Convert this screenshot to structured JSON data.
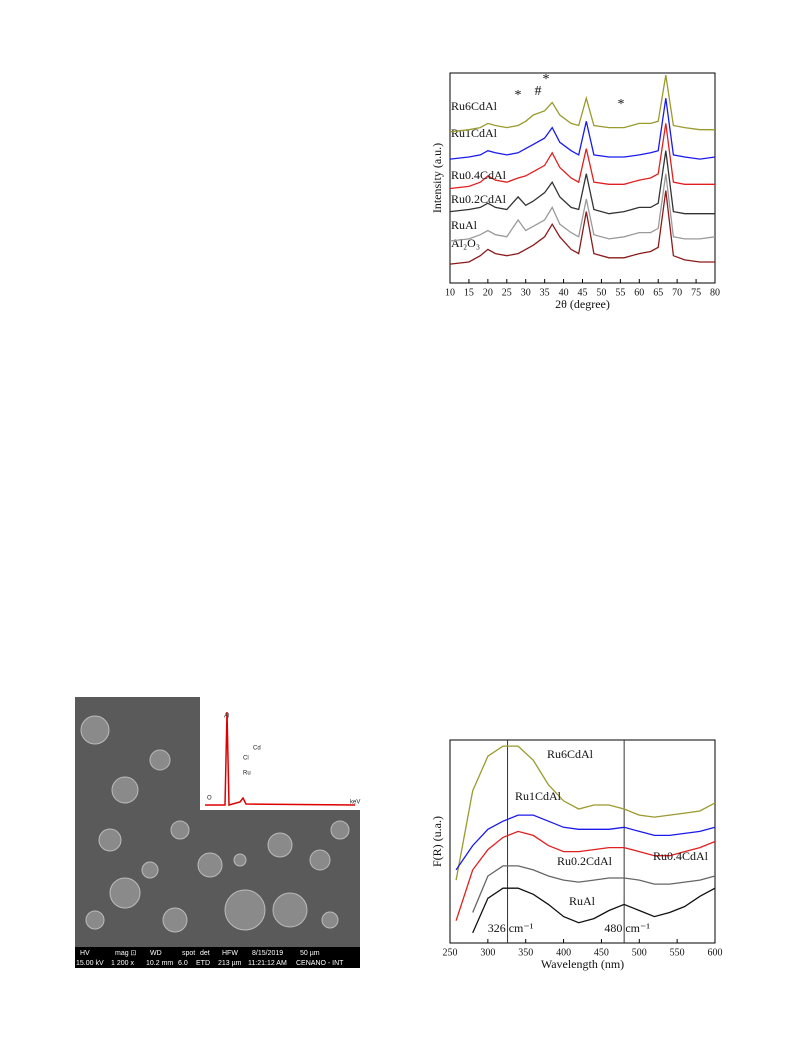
{
  "chart_data": [
    {
      "type": "line",
      "xlabel": "2θ (degree)",
      "ylabel": "Intensity (a.u.)",
      "xlim": [
        10,
        80
      ],
      "xticks": [
        10,
        15,
        20,
        25,
        30,
        35,
        40,
        45,
        50,
        55,
        60,
        65,
        70,
        75,
        80
      ],
      "ylim": [
        0,
        100
      ],
      "annotations": [
        "*",
        "#",
        "*",
        "*"
      ],
      "x": [
        10,
        15,
        18,
        20,
        22,
        25,
        28,
        30,
        32,
        35,
        37,
        39,
        42,
        44,
        46,
        48,
        52,
        56,
        60,
        63,
        65,
        67,
        69,
        72,
        76,
        80
      ],
      "series": [
        {
          "name": "Al₂O₃",
          "color": "#8b1a1a",
          "values": [
            9,
            10,
            13,
            16,
            14,
            13,
            14,
            16,
            18,
            22,
            28,
            22,
            16,
            14,
            34,
            14,
            12,
            12,
            14,
            15,
            17,
            44,
            13,
            11,
            10,
            10
          ]
        },
        {
          "name": "RuAl",
          "color": "#9a9a9a",
          "values": [
            20,
            21,
            23,
            25,
            23,
            22,
            30,
            25,
            27,
            30,
            36,
            28,
            24,
            22,
            40,
            23,
            21,
            22,
            24,
            24,
            26,
            52,
            22,
            21,
            21,
            22
          ]
        },
        {
          "name": "Ru0.2CdAl",
          "color": "#333333",
          "values": [
            34,
            35,
            36,
            38,
            36,
            35,
            41,
            37,
            39,
            43,
            48,
            41,
            36,
            35,
            52,
            35,
            33,
            34,
            36,
            36,
            38,
            63,
            34,
            33,
            33,
            33
          ]
        },
        {
          "name": "Ru0.4CdAl",
          "color": "#e02020",
          "values": [
            45,
            46,
            48,
            51,
            49,
            48,
            50,
            51,
            53,
            56,
            62,
            55,
            50,
            48,
            64,
            48,
            47,
            47,
            49,
            50,
            52,
            76,
            48,
            47,
            47,
            47
          ]
        },
        {
          "name": "Ru1CdAl",
          "color": "#1a1aee",
          "values": [
            59,
            60,
            61,
            63,
            62,
            61,
            62,
            64,
            66,
            69,
            74,
            67,
            63,
            61,
            77,
            61,
            60,
            60,
            61,
            62,
            63,
            88,
            61,
            60,
            59,
            60
          ]
        },
        {
          "name": "Ru6CdAl",
          "color": "#9a9a2e",
          "values": [
            72,
            73,
            74,
            76,
            75,
            74,
            75,
            77,
            80,
            82,
            86,
            80,
            76,
            75,
            88,
            75,
            74,
            74,
            76,
            76,
            77,
            99,
            75,
            74,
            73,
            73
          ]
        }
      ]
    },
    {
      "type": "line",
      "xlabel": "Wavelength (nm)",
      "ylabel": "F(R) (u.a.)",
      "xlim": [
        250,
        600
      ],
      "xticks": [
        250,
        300,
        350,
        400,
        450,
        500,
        550,
        600
      ],
      "ylim": [
        0,
        100
      ],
      "vlines": [
        {
          "value": 326,
          "label": "326 cm⁻¹"
        },
        {
          "value": 480,
          "label": "480 cm⁻¹"
        }
      ],
      "x": [
        258,
        280,
        300,
        320,
        340,
        360,
        380,
        400,
        420,
        440,
        460,
        480,
        500,
        520,
        540,
        560,
        580,
        600
      ],
      "series": [
        {
          "name": "Ru6CdAl",
          "color": "#9a9a2e",
          "values": [
            31,
            75,
            92,
            97,
            97,
            90,
            78,
            70,
            66,
            68,
            68,
            66,
            63,
            62,
            63,
            64,
            65,
            69
          ]
        },
        {
          "name": "Ru1CdAl",
          "color": "#1a1aee",
          "values": [
            36,
            48,
            56,
            60,
            63,
            63,
            60,
            57,
            56,
            56,
            56,
            57,
            55,
            53,
            53,
            54,
            55,
            57
          ]
        },
        {
          "name": "Ru0.4CdAl",
          "color": "#e02020",
          "values": [
            11,
            36,
            46,
            52,
            55,
            53,
            48,
            45,
            45,
            46,
            47,
            47,
            45,
            43,
            43,
            45,
            47,
            50
          ]
        },
        {
          "name": "Ru0.2CdAl",
          "color": "#666666",
          "values": [
            null,
            15,
            33,
            38,
            38,
            36,
            33,
            31,
            30,
            31,
            32,
            32,
            31,
            29,
            29,
            30,
            31,
            33
          ]
        },
        {
          "name": "RuAl",
          "color": "#111111",
          "values": [
            null,
            5,
            22,
            27,
            27,
            24,
            19,
            13,
            10,
            12,
            16,
            19,
            16,
            13,
            15,
            18,
            23,
            27
          ]
        }
      ]
    }
  ],
  "sem_image": {
    "inset_labels": [
      "Al",
      "Cd",
      "Cl",
      "Ru",
      "O",
      "keV"
    ],
    "info_top": [
      "HV",
      "mag ⊡",
      "WD",
      "spot",
      "det",
      "HFW",
      "8/15/2019",
      "50 µm"
    ],
    "info_bottom": [
      "15.00 kV",
      "1 200 x",
      "10.2 mm",
      "6.0",
      "ETD",
      "213 µm",
      "11:21:12 AM",
      "CENANO - INT"
    ]
  }
}
